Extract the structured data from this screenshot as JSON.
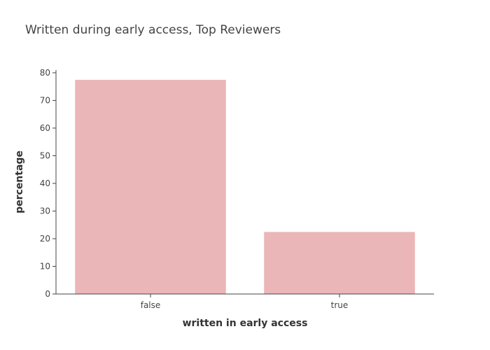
{
  "chart_data": {
    "type": "bar",
    "title": "Written during early access, Top Reviewers",
    "xlabel": "written in early access",
    "ylabel": "percentage",
    "categories": [
      "false",
      "true"
    ],
    "values": [
      77.5,
      22.5
    ],
    "ylim": [
      0,
      81
    ],
    "yticks": [
      0,
      10,
      20,
      30,
      40,
      50,
      60,
      70,
      80
    ],
    "bar_color": "#ebb6b8",
    "grid": false
  }
}
